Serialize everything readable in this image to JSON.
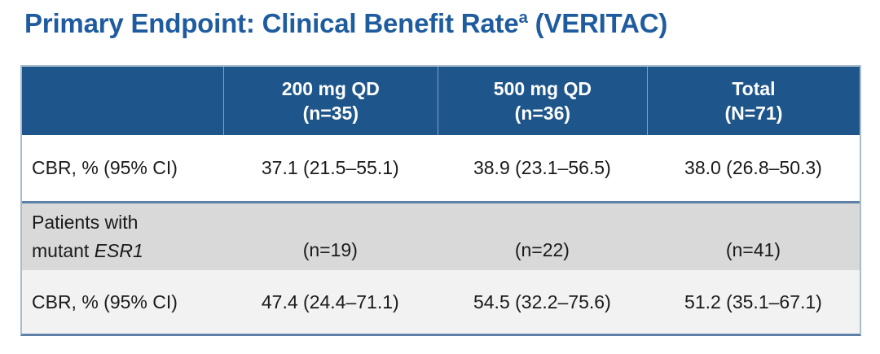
{
  "title": {
    "prefix": "Primary Endpoint: Clinical Benefit Rate",
    "superscript": "a",
    "suffix": " (VERITAC)"
  },
  "colors": {
    "title_blue": "#1F5C9F",
    "header_blue": "#1E568C",
    "row_white": "#FFFFFF",
    "row_gray": "#D9D9D9",
    "row_light": "#F2F2F2",
    "divider_blue": "#5C80A7",
    "outer_border": "#A9BCCE",
    "text_black": "#1A1A1A"
  },
  "table": {
    "header": {
      "label_col": "",
      "columns": [
        {
          "line1": "200 mg QD",
          "line2": "(n=35)"
        },
        {
          "line1": "500 mg QD",
          "line2": "(n=36)"
        },
        {
          "line1": "Total",
          "line2": "(N=71)"
        }
      ]
    },
    "rows": [
      {
        "label": "CBR, % (95% CI)",
        "values": [
          "37.1 (21.5–55.1)",
          "38.9 (23.1–56.5)",
          "38.0 (26.8–50.3)"
        ]
      },
      {
        "label_line1": "Patients with",
        "label_line2_prefix": "mutant ",
        "label_line2_italic": "ESR1",
        "values": [
          "(n=19)",
          "(n=22)",
          "(n=41)"
        ]
      },
      {
        "label": "CBR, % (95% CI)",
        "values": [
          "47.4 (24.4–71.1)",
          "54.5 (32.2–75.6)",
          "51.2 (35.1–67.1)"
        ]
      }
    ]
  }
}
